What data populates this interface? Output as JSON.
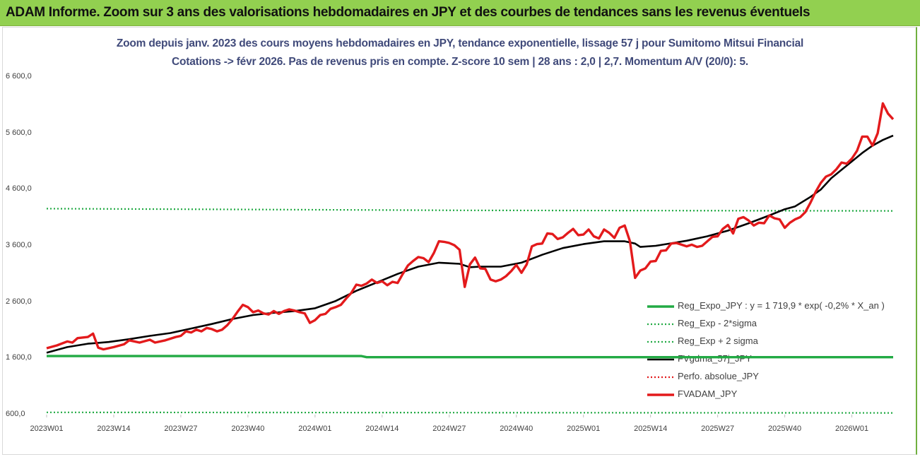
{
  "banner": {
    "title": "ADAM Informe. Zoom sur 3 ans des valorisations hebdomadaires en JPY et des courbes de tendances sans les revenus éventuels"
  },
  "colors": {
    "banner_bg": "#92d050",
    "red_series": "#e31a1c",
    "black_series": "#000000",
    "green_series": "#22aa44",
    "title_text": "#404a7a"
  },
  "chart_data": {
    "type": "line",
    "title_line1": "Zoom depuis janv. 2023 des cours moyens hebdomadaires en JPY, tendance exponentielle, lissage 57 j pour Sumitomo Mitsui Financial",
    "title_line2": "Cotations -> févr 2026.  Pas de revenus pris en compte. Z-score 10 sem | 28 ans : 2,0 | 2,7. Momentum A/V (20/0): 5.",
    "ylim": [
      600,
      6600
    ],
    "y_ticks": [
      {
        "value": 600,
        "label": "600,0"
      },
      {
        "value": 1600,
        "label": "1 600,0"
      },
      {
        "value": 2600,
        "label": "2 600,0"
      },
      {
        "value": 3600,
        "label": "3 600,0"
      },
      {
        "value": 4600,
        "label": "4 600,0"
      },
      {
        "value": 5600,
        "label": "5 600,0"
      },
      {
        "value": 6600,
        "label": "6 600,0"
      }
    ],
    "x_ticks": [
      {
        "week": 0,
        "label": "2023W01"
      },
      {
        "week": 13,
        "label": "2023W14"
      },
      {
        "week": 26,
        "label": "2023W27"
      },
      {
        "week": 39,
        "label": "2023W40"
      },
      {
        "week": 52,
        "label": "2024W01"
      },
      {
        "week": 65,
        "label": "2024W14"
      },
      {
        "week": 78,
        "label": "2024W27"
      },
      {
        "week": 91,
        "label": "2024W40"
      },
      {
        "week": 104,
        "label": "2025W01"
      },
      {
        "week": 117,
        "label": "2025W14"
      },
      {
        "week": 130,
        "label": "2025W27"
      },
      {
        "week": 143,
        "label": "2025W40"
      },
      {
        "week": 156,
        "label": "2026W01"
      }
    ],
    "legend": [
      {
        "label": "Reg_Expo_JPY : y = 1 719,9 * exp( -0,2% *  X_an )",
        "color": "#22aa44",
        "style": "solid-thick"
      },
      {
        "label": "Reg_Exp - 2*sigma",
        "color": "#22aa44",
        "style": "dotted"
      },
      {
        "label": "Reg_Exp + 2 sigma",
        "color": "#22aa44",
        "style": "dotted"
      },
      {
        "label": "FVgdma_57j_JPY",
        "color": "#000000",
        "style": "solid"
      },
      {
        "label": "Perfo. absolue_JPY",
        "color": "#e31a1c",
        "style": "dotted"
      },
      {
        "label": "FVADAM_JPY",
        "color": "#e31a1c",
        "style": "solid-thick"
      }
    ],
    "series": [
      {
        "name": "FVADAM_JPY",
        "points": [
          [
            0,
            1780
          ],
          [
            2,
            1830
          ],
          [
            4,
            1900
          ],
          [
            5,
            1880
          ],
          [
            6,
            1960
          ],
          [
            8,
            1980
          ],
          [
            9,
            2040
          ],
          [
            10,
            1790
          ],
          [
            11,
            1760
          ],
          [
            13,
            1800
          ],
          [
            15,
            1850
          ],
          [
            16,
            1920
          ],
          [
            18,
            1880
          ],
          [
            20,
            1930
          ],
          [
            21,
            1880
          ],
          [
            23,
            1920
          ],
          [
            25,
            1980
          ],
          [
            26,
            2000
          ],
          [
            27,
            2080
          ],
          [
            28,
            2060
          ],
          [
            29,
            2110
          ],
          [
            30,
            2080
          ],
          [
            31,
            2140
          ],
          [
            32,
            2120
          ],
          [
            33,
            2080
          ],
          [
            34,
            2110
          ],
          [
            35,
            2190
          ],
          [
            36,
            2300
          ],
          [
            37,
            2430
          ],
          [
            38,
            2550
          ],
          [
            39,
            2510
          ],
          [
            40,
            2420
          ],
          [
            41,
            2450
          ],
          [
            42,
            2400
          ],
          [
            43,
            2380
          ],
          [
            44,
            2440
          ],
          [
            45,
            2390
          ],
          [
            46,
            2440
          ],
          [
            47,
            2470
          ],
          [
            48,
            2450
          ],
          [
            49,
            2420
          ],
          [
            50,
            2400
          ],
          [
            51,
            2230
          ],
          [
            52,
            2280
          ],
          [
            53,
            2370
          ],
          [
            54,
            2390
          ],
          [
            55,
            2480
          ],
          [
            56,
            2510
          ],
          [
            57,
            2550
          ],
          [
            58,
            2660
          ],
          [
            59,
            2760
          ],
          [
            60,
            2910
          ],
          [
            61,
            2890
          ],
          [
            62,
            2930
          ],
          [
            63,
            3000
          ],
          [
            64,
            2940
          ],
          [
            65,
            2970
          ],
          [
            66,
            2900
          ],
          [
            67,
            2960
          ],
          [
            68,
            2940
          ],
          [
            69,
            3100
          ],
          [
            70,
            3250
          ],
          [
            71,
            3330
          ],
          [
            72,
            3400
          ],
          [
            73,
            3380
          ],
          [
            74,
            3310
          ],
          [
            75,
            3470
          ],
          [
            76,
            3680
          ],
          [
            77,
            3670
          ],
          [
            78,
            3650
          ],
          [
            79,
            3610
          ],
          [
            80,
            3530
          ],
          [
            81,
            2870
          ],
          [
            82,
            3270
          ],
          [
            83,
            3390
          ],
          [
            84,
            3200
          ],
          [
            85,
            3190
          ],
          [
            86,
            3000
          ],
          [
            87,
            2970
          ],
          [
            88,
            3000
          ],
          [
            89,
            3060
          ],
          [
            90,
            3150
          ],
          [
            91,
            3260
          ],
          [
            92,
            3120
          ],
          [
            93,
            3270
          ],
          [
            94,
            3590
          ],
          [
            95,
            3630
          ],
          [
            96,
            3640
          ],
          [
            97,
            3820
          ],
          [
            98,
            3810
          ],
          [
            99,
            3720
          ],
          [
            100,
            3750
          ],
          [
            101,
            3830
          ],
          [
            102,
            3900
          ],
          [
            103,
            3790
          ],
          [
            104,
            3800
          ],
          [
            105,
            3890
          ],
          [
            106,
            3770
          ],
          [
            107,
            3730
          ],
          [
            108,
            3890
          ],
          [
            109,
            3830
          ],
          [
            110,
            3740
          ],
          [
            111,
            3920
          ],
          [
            112,
            3960
          ],
          [
            113,
            3680
          ],
          [
            114,
            3030
          ],
          [
            115,
            3160
          ],
          [
            116,
            3200
          ],
          [
            117,
            3320
          ],
          [
            118,
            3330
          ],
          [
            119,
            3510
          ],
          [
            120,
            3520
          ],
          [
            121,
            3640
          ],
          [
            122,
            3650
          ],
          [
            123,
            3620
          ],
          [
            124,
            3590
          ],
          [
            125,
            3620
          ],
          [
            126,
            3580
          ],
          [
            127,
            3600
          ],
          [
            128,
            3680
          ],
          [
            129,
            3760
          ],
          [
            130,
            3770
          ],
          [
            131,
            3900
          ],
          [
            132,
            3970
          ],
          [
            133,
            3820
          ],
          [
            134,
            4080
          ],
          [
            135,
            4110
          ],
          [
            136,
            4050
          ],
          [
            137,
            3960
          ],
          [
            138,
            4010
          ],
          [
            139,
            4000
          ],
          [
            140,
            4140
          ],
          [
            141,
            4090
          ],
          [
            142,
            4070
          ],
          [
            143,
            3920
          ],
          [
            144,
            4010
          ],
          [
            145,
            4070
          ],
          [
            146,
            4110
          ],
          [
            147,
            4200
          ],
          [
            148,
            4370
          ],
          [
            149,
            4560
          ],
          [
            150,
            4720
          ],
          [
            151,
            4830
          ],
          [
            152,
            4870
          ],
          [
            153,
            4960
          ],
          [
            154,
            5080
          ],
          [
            155,
            5060
          ],
          [
            156,
            5150
          ],
          [
            157,
            5290
          ],
          [
            158,
            5540
          ],
          [
            159,
            5540
          ],
          [
            160,
            5380
          ],
          [
            161,
            5600
          ],
          [
            162,
            6130
          ],
          [
            163,
            5950
          ],
          [
            164,
            5850
          ]
        ]
      },
      {
        "name": "FVgdma_57j_JPY",
        "points": [
          [
            0,
            1700
          ],
          [
            4,
            1800
          ],
          [
            8,
            1860
          ],
          [
            12,
            1890
          ],
          [
            16,
            1940
          ],
          [
            20,
            2000
          ],
          [
            24,
            2050
          ],
          [
            28,
            2130
          ],
          [
            32,
            2210
          ],
          [
            36,
            2300
          ],
          [
            40,
            2370
          ],
          [
            44,
            2410
          ],
          [
            48,
            2440
          ],
          [
            52,
            2490
          ],
          [
            56,
            2620
          ],
          [
            60,
            2800
          ],
          [
            64,
            2950
          ],
          [
            68,
            3100
          ],
          [
            72,
            3230
          ],
          [
            76,
            3300
          ],
          [
            80,
            3280
          ],
          [
            82,
            3220
          ],
          [
            84,
            3230
          ],
          [
            88,
            3230
          ],
          [
            92,
            3300
          ],
          [
            96,
            3440
          ],
          [
            100,
            3560
          ],
          [
            104,
            3630
          ],
          [
            108,
            3680
          ],
          [
            112,
            3680
          ],
          [
            114,
            3640
          ],
          [
            115,
            3580
          ],
          [
            118,
            3600
          ],
          [
            120,
            3630
          ],
          [
            124,
            3690
          ],
          [
            128,
            3770
          ],
          [
            132,
            3870
          ],
          [
            136,
            4000
          ],
          [
            140,
            4140
          ],
          [
            143,
            4250
          ],
          [
            145,
            4300
          ],
          [
            148,
            4470
          ],
          [
            150,
            4600
          ],
          [
            152,
            4800
          ],
          [
            154,
            4950
          ],
          [
            156,
            5100
          ],
          [
            158,
            5250
          ],
          [
            160,
            5380
          ],
          [
            162,
            5480
          ],
          [
            164,
            5560
          ]
        ]
      },
      {
        "name": "Reg_Expo_JPY : y = 1 719,9 * exp( -0,2% *  X_an )",
        "points": [
          [
            0,
            1640
          ],
          [
            61,
            1640
          ],
          [
            62,
            1620
          ],
          [
            164,
            1620
          ]
        ]
      },
      {
        "name": "Reg_Exp + 2 sigma",
        "points": [
          [
            0,
            4260
          ],
          [
            80,
            4230
          ],
          [
            164,
            4220
          ]
        ]
      },
      {
        "name": "Reg_Exp - 2*sigma",
        "points": [
          [
            0,
            640
          ],
          [
            164,
            630
          ]
        ]
      }
    ],
    "x_range_weeks": [
      0,
      164
    ],
    "grid": false,
    "legend_position": "bottom-right"
  }
}
